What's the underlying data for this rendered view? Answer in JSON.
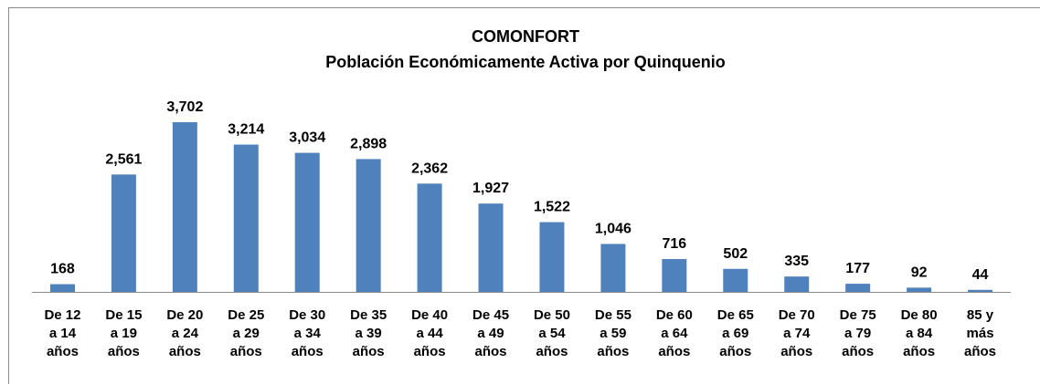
{
  "chart_data": {
    "type": "bar",
    "title": "COMONFORT",
    "subtitle": "Población Económicamente Activa por Quinquenio",
    "categories": [
      "De 12\na 14\naños",
      "De 15\na 19\naños",
      "De 20\na 24\naños",
      "De 25\na 29\naños",
      "De 30\na 34\naños",
      "De 35\na 39\naños",
      "De 40\na 44\naños",
      "De 45\na 49\naños",
      "De 50\na 54\naños",
      "De 55\na 59\naños",
      "De 60\na 64\naños",
      "De 65\na 69\naños",
      "De 70\na 74\naños",
      "De 75\na 79\naños",
      "De 80\na 84\naños",
      "85 y\nmás\naños"
    ],
    "values": [
      168,
      2561,
      3702,
      3214,
      3034,
      2898,
      2362,
      1927,
      1522,
      1046,
      716,
      502,
      335,
      177,
      92,
      44
    ],
    "value_labels": [
      "168",
      "2,561",
      "3,702",
      "3,214",
      "3,034",
      "2,898",
      "2,362",
      "1,927",
      "1,522",
      "1,046",
      "716",
      "502",
      "335",
      "177",
      "92",
      "44"
    ],
    "color": "#4f81bd"
  }
}
